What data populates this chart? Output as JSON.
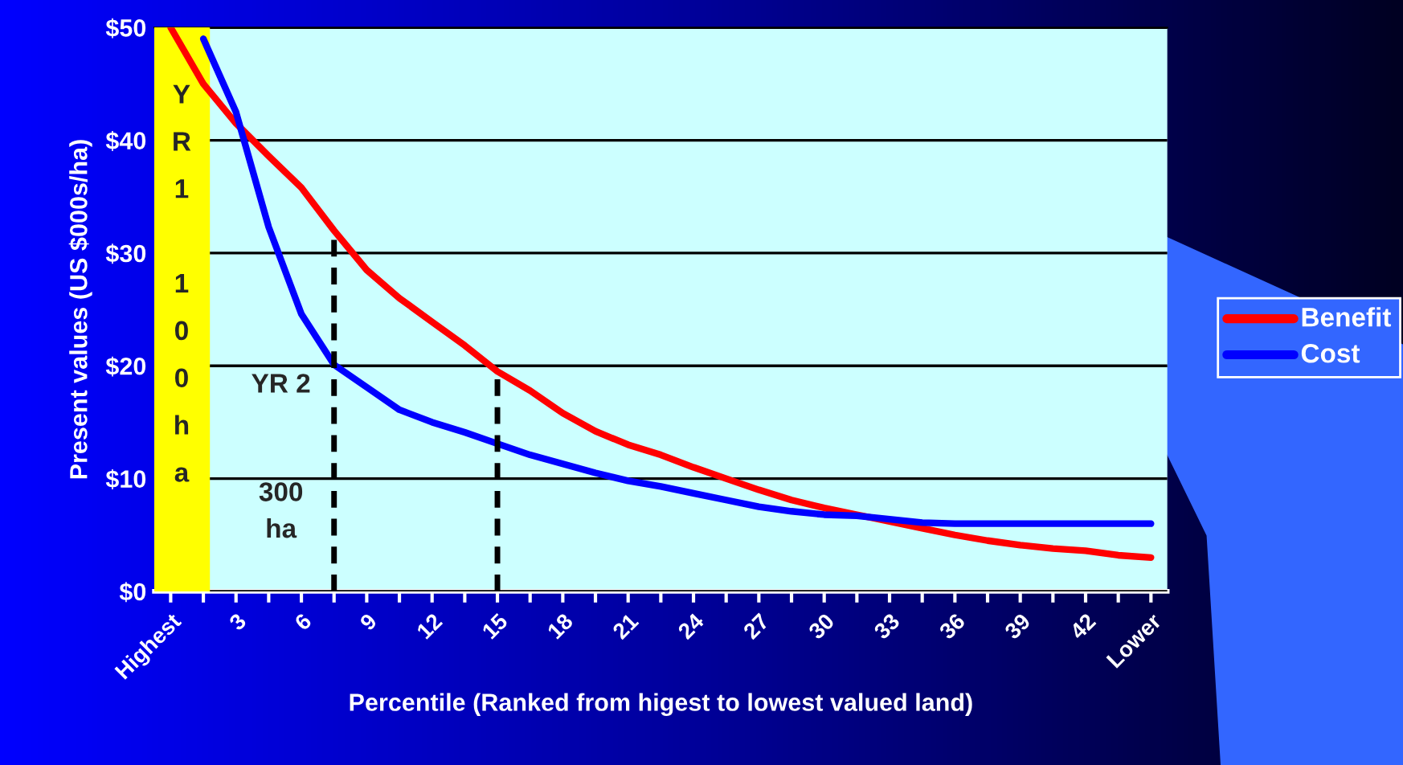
{
  "chart_data": {
    "type": "line",
    "xlabel": "Percentile (Ranked from higest to lowest valued land)",
    "ylabel": "Present values (US $000s/ha)",
    "x": [
      0,
      1.5,
      3,
      4.5,
      6,
      7.5,
      9,
      10.5,
      12,
      13.5,
      15,
      16.5,
      18,
      19.5,
      21,
      22.5,
      24,
      25.5,
      27,
      28.5,
      30,
      31.5,
      33,
      34.5,
      36,
      37.5,
      39,
      40.5,
      42,
      43.5,
      45
    ],
    "series": [
      {
        "name": "Benefit",
        "color": "#ff0000",
        "line_style": "solid",
        "values": [
          50,
          45,
          41.5,
          38.6,
          35.8,
          32,
          28.5,
          26,
          23.9,
          21.8,
          19.5,
          17.8,
          15.8,
          14.2,
          13,
          12.1,
          11,
          10,
          9,
          8.1,
          7.4,
          6.8,
          6.2,
          5.6,
          5,
          4.5,
          4.1,
          3.8,
          3.6,
          3.2,
          3.0
        ]
      },
      {
        "name": "Cost",
        "color": "#0000ff",
        "line_style": "solid",
        "values": [
          null,
          49,
          42.5,
          32.3,
          24.6,
          20.1,
          18.1,
          16.1,
          15,
          14.1,
          13.1,
          12.1,
          11.3,
          10.5,
          9.8,
          9.3,
          8.7,
          8.1,
          7.5,
          7.1,
          6.8,
          6.7,
          6.4,
          6.1,
          6.0,
          6.0,
          6.0,
          6.0,
          6.0,
          6.0,
          6.0
        ]
      }
    ],
    "ref_lines": [
      {
        "axis": "x",
        "value": 7.5,
        "color": "#000000",
        "line_style": "dashed"
      },
      {
        "axis": "x",
        "value": 15,
        "color": "#000000",
        "line_style": "dashed"
      }
    ],
    "xlim": [
      -0.75,
      45.75
    ],
    "xticks": [
      {
        "value": 0,
        "label": "Highest"
      },
      {
        "value": 1.5,
        "label": null
      },
      {
        "value": 3,
        "label": "3"
      },
      {
        "value": 4.5,
        "label": null
      },
      {
        "value": 6,
        "label": "6"
      },
      {
        "value": 7.5,
        "label": null
      },
      {
        "value": 9,
        "label": "9"
      },
      {
        "value": 10.5,
        "label": null
      },
      {
        "value": 12,
        "label": "12"
      },
      {
        "value": 13.5,
        "label": null
      },
      {
        "value": 15,
        "label": "15"
      },
      {
        "value": 16.5,
        "label": null
      },
      {
        "value": 18,
        "label": "18"
      },
      {
        "value": 19.5,
        "label": null
      },
      {
        "value": 21,
        "label": "21"
      },
      {
        "value": 22.5,
        "label": null
      },
      {
        "value": 24,
        "label": "24"
      },
      {
        "value": 25.5,
        "label": null
      },
      {
        "value": 27,
        "label": "27"
      },
      {
        "value": 28.5,
        "label": null
      },
      {
        "value": 30,
        "label": "30"
      },
      {
        "value": 31.5,
        "label": null
      },
      {
        "value": 33,
        "label": "33"
      },
      {
        "value": 34.5,
        "label": null
      },
      {
        "value": 36,
        "label": "36"
      },
      {
        "value": 37.5,
        "label": null
      },
      {
        "value": 39,
        "label": "39"
      },
      {
        "value": 40.5,
        "label": null
      },
      {
        "value": 42,
        "label": "42"
      },
      {
        "value": 43.5,
        "label": null
      },
      {
        "value": 45,
        "label": "Lower"
      }
    ],
    "ylim": [
      0,
      50
    ],
    "yticks": [
      {
        "value": 0,
        "label": "$0"
      },
      {
        "value": 10,
        "label": "$10"
      },
      {
        "value": 20,
        "label": "$20"
      },
      {
        "value": 30,
        "label": "$30"
      },
      {
        "value": 40,
        "label": "$40"
      },
      {
        "value": 50,
        "label": "$50"
      }
    ],
    "bands": [
      {
        "axis": "x",
        "from": -0.75,
        "to": 1.75,
        "label": "YR1 100ha",
        "color": "#ffff00"
      }
    ],
    "annotations": [
      "YR 2",
      "300\nha"
    ],
    "grid": "y",
    "legend": "right"
  }
}
